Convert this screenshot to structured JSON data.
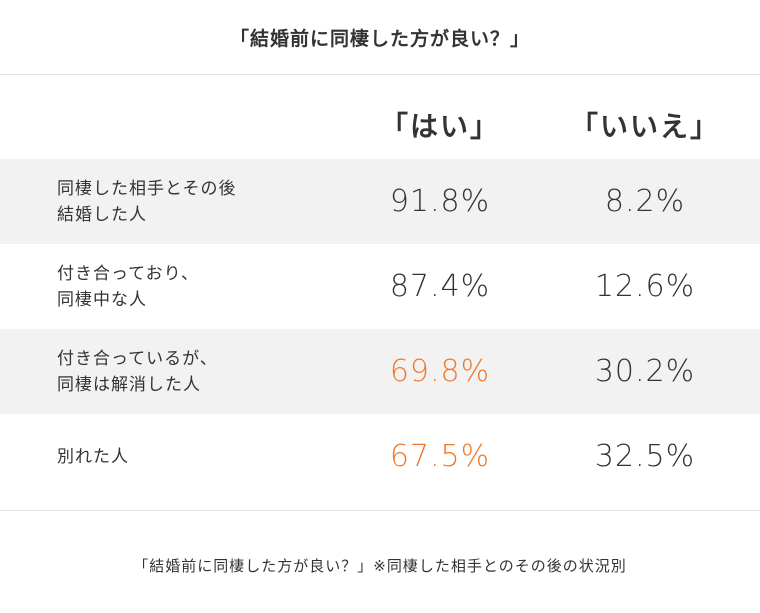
{
  "title": "「結婚前に同棲した方が良い？」",
  "columns": {
    "yes": "「はい」",
    "no": "「いいえ」"
  },
  "highlight_color": "#ef7a2c",
  "footnote": "「結婚前に同棲した方が良い？」※同棲した相手とのその後の状況別",
  "rows": [
    {
      "label": "同棲した相手とその後\n結婚した人",
      "yes": "91.8%",
      "no": "8.2%"
    },
    {
      "label": "付き合っており、\n同棲中な人",
      "yes": "87.4%",
      "no": "12.6%"
    },
    {
      "label": "付き合っているが、\n同棲は解消した人",
      "yes": "69.8%",
      "no": "30.2%"
    },
    {
      "label": "別れた人",
      "yes": "67.5%",
      "no": "32.5%"
    }
  ],
  "chart_data": {
    "type": "table",
    "title": "「結婚前に同棲した方が良い？」",
    "columns": [
      "「はい」",
      "「いいえ」"
    ],
    "categories": [
      "同棲した相手とその後結婚した人",
      "付き合っており、同棲中な人",
      "付き合っているが、同棲は解消した人",
      "別れた人"
    ],
    "series": [
      {
        "name": "「はい」",
        "values": [
          91.8,
          87.4,
          69.8,
          67.5
        ]
      },
      {
        "name": "「いいえ」",
        "values": [
          8.2,
          12.6,
          30.2,
          32.5
        ]
      }
    ],
    "highlighted_cells": [
      [
        2,
        0
      ],
      [
        3,
        0
      ]
    ]
  }
}
